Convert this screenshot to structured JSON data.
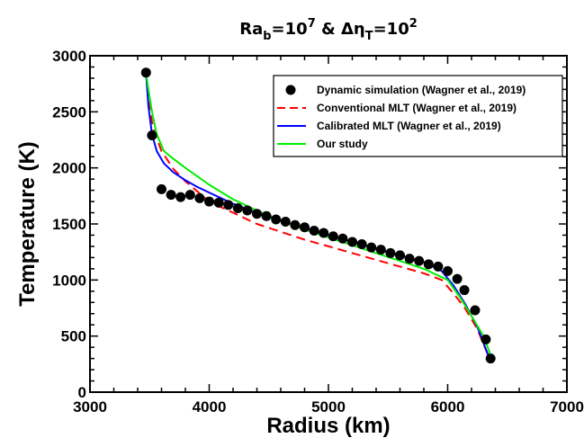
{
  "chart_data": {
    "type": "line",
    "title": {
      "main": "Ra",
      "sub1": "b",
      "eq": "=10",
      "sup1": "7",
      "amp": " & ",
      "delta": "Δη",
      "sub2": "T",
      "eq2": "=10",
      "sup2": "2"
    },
    "xlabel": "Radius (km)",
    "ylabel": "Temperature (K)",
    "xlim": [
      3000,
      7000
    ],
    "ylim": [
      0,
      3000
    ],
    "xticks": [
      3000,
      4000,
      5000,
      6000,
      7000
    ],
    "yticks": [
      0,
      500,
      1000,
      1500,
      2000,
      2500,
      3000
    ],
    "legend_position": "top-right",
    "series": [
      {
        "name": "Dynamic simulation (Wagner et al., 2019)",
        "style": "markers",
        "color": "#000000",
        "x": [
          3470,
          3520,
          3600,
          3680,
          3760,
          3840,
          3920,
          4000,
          4080,
          4160,
          4240,
          4320,
          4400,
          4480,
          4560,
          4640,
          4720,
          4800,
          4880,
          4960,
          5040,
          5120,
          5200,
          5280,
          5360,
          5440,
          5520,
          5600,
          5680,
          5760,
          5840,
          5920,
          6000,
          6080,
          6140,
          6230,
          6320,
          6360
        ],
        "y": [
          2850,
          2290,
          1810,
          1760,
          1740,
          1760,
          1730,
          1700,
          1690,
          1670,
          1640,
          1620,
          1590,
          1570,
          1540,
          1520,
          1490,
          1470,
          1440,
          1420,
          1390,
          1370,
          1340,
          1320,
          1290,
          1270,
          1240,
          1220,
          1190,
          1170,
          1140,
          1120,
          1080,
          1010,
          910,
          730,
          470,
          300
        ]
      },
      {
        "name": "Conventional MLT (Wagner et al., 2019)",
        "style": "dashed",
        "color": "#ff0000",
        "x": [
          3470,
          3490,
          3530,
          3600,
          3700,
          3800,
          3900,
          4000,
          4200,
          4400,
          4600,
          4800,
          5000,
          5200,
          5400,
          5600,
          5800,
          5950,
          6050,
          6150,
          6250,
          6350
        ],
        "y": [
          2850,
          2600,
          2350,
          2150,
          1990,
          1880,
          1790,
          1700,
          1600,
          1500,
          1430,
          1360,
          1300,
          1240,
          1180,
          1120,
          1060,
          1000,
          880,
          740,
          560,
          300
        ]
      },
      {
        "name": "Calibrated MLT (Wagner et al., 2019)",
        "style": "solid",
        "color": "#0000ff",
        "x": [
          3470,
          3490,
          3520,
          3560,
          3620,
          3700,
          3800,
          3900,
          4000,
          4200,
          4400,
          4600,
          4800,
          5000,
          5200,
          5400,
          5600,
          5800,
          5950,
          6050,
          6150,
          6250,
          6350
        ],
        "y": [
          2850,
          2550,
          2300,
          2150,
          2040,
          1960,
          1890,
          1830,
          1780,
          1680,
          1600,
          1530,
          1460,
          1400,
          1340,
          1280,
          1220,
          1160,
          1080,
          950,
          780,
          580,
          300
        ]
      },
      {
        "name": "Our study",
        "style": "solid",
        "color": "#00ee00",
        "x": [
          3470,
          3490,
          3520,
          3560,
          3620,
          3700,
          3800,
          4000,
          4200,
          4400,
          4600,
          4800,
          5000,
          5200,
          5400,
          5600,
          5800,
          6000,
          6100,
          6200,
          6300,
          6360
        ],
        "y": [
          2850,
          2700,
          2500,
          2300,
          2150,
          2080,
          2000,
          1850,
          1720,
          1620,
          1530,
          1450,
          1380,
          1310,
          1240,
          1170,
          1100,
          1000,
          850,
          680,
          500,
          330
        ]
      }
    ]
  }
}
